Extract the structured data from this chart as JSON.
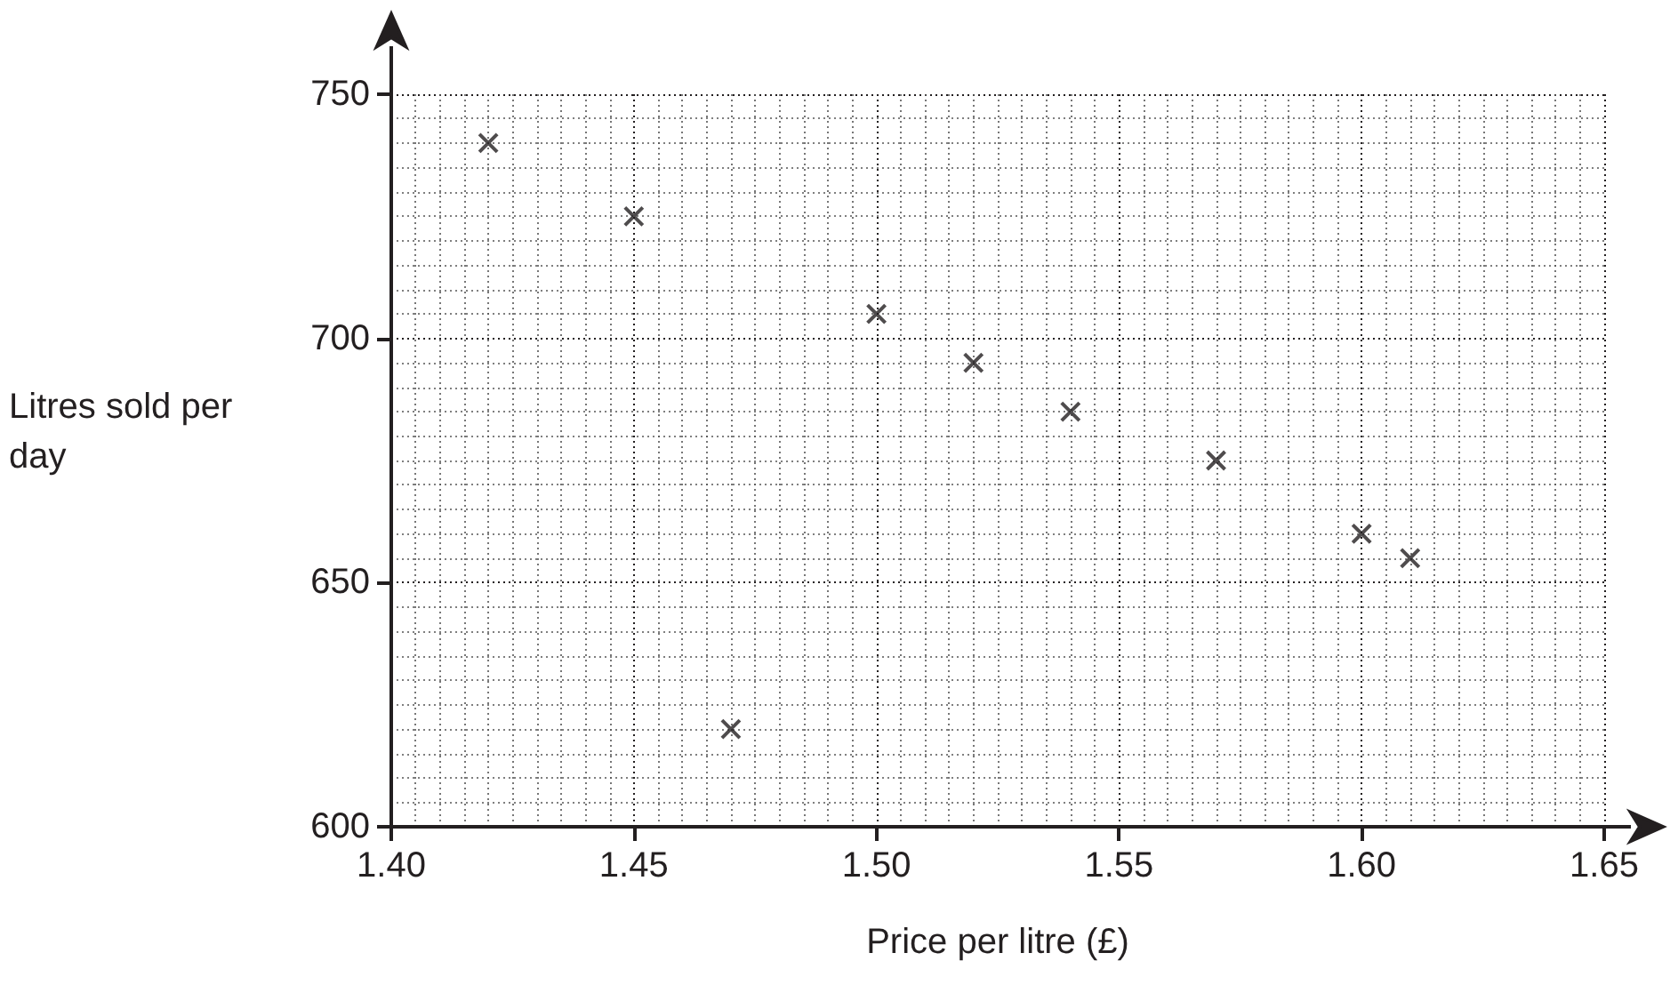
{
  "chart_data": {
    "type": "scatter",
    "xlabel": "Price per litre (£)",
    "ylabel": "Litres sold per day",
    "x": [
      1.42,
      1.45,
      1.47,
      1.5,
      1.52,
      1.54,
      1.57,
      1.6,
      1.61
    ],
    "series": [
      {
        "color": "#231f20",
        "values": [
          740,
          725,
          620,
          705,
          695,
          685,
          675,
          660,
          655
        ]
      }
    ],
    "xlim": [
      1.4,
      1.65
    ],
    "xticks": [
      {
        "value": 1.4,
        "label": "1.40"
      },
      {
        "value": 1.45,
        "label": "1.45"
      },
      {
        "value": 1.5,
        "label": "1.50"
      },
      {
        "value": 1.55,
        "label": "1.55"
      },
      {
        "value": 1.6,
        "label": "1.60"
      },
      {
        "value": 1.65,
        "label": "1.65"
      }
    ],
    "ylim": [
      600,
      750
    ],
    "yticks": [
      600,
      650,
      700,
      750
    ],
    "grid": true,
    "marker": "cross"
  }
}
